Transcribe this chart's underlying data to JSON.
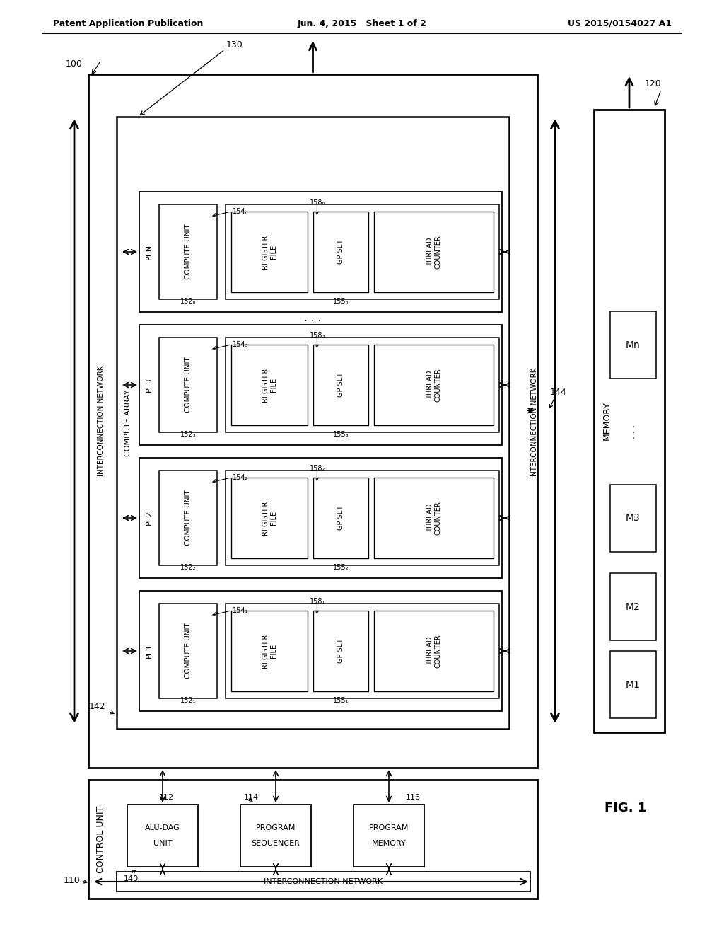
{
  "title_left": "Patent Application Publication",
  "title_mid": "Jun. 4, 2015   Sheet 1 of 2",
  "title_right": "US 2015/0154027 A1",
  "fig_label": "FIG. 1",
  "bg_color": "#ffffff"
}
